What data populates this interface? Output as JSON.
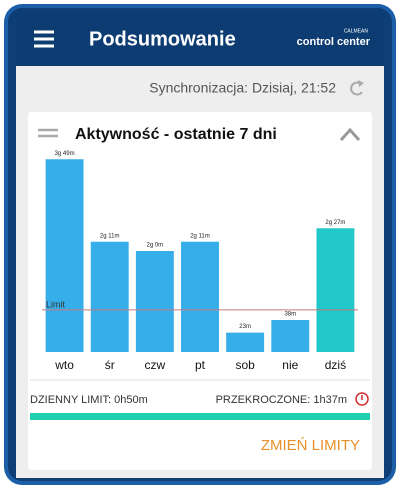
{
  "header": {
    "title": "Podsumowanie",
    "brand_small": "CALMEAN",
    "brand": "control center"
  },
  "sync": "Synchronizacja: Dzisiaj, 21:52",
  "card_title": "Aktywność - ostatnie 7 dni",
  "chart_data": {
    "type": "bar",
    "categories": [
      "wto",
      "śr",
      "czw",
      "pt",
      "sob",
      "nie",
      "dziś"
    ],
    "values": [
      229,
      131,
      120,
      131,
      23,
      38,
      147
    ],
    "value_labels": [
      "3g 49m",
      "2g 11m",
      "2g 0m",
      "2g 11m",
      "23m",
      "38m",
      "2g 27m"
    ],
    "colors": [
      "#35aee9",
      "#35aee9",
      "#35aee9",
      "#35aee9",
      "#35aee9",
      "#35aee9",
      "#22c7c9"
    ],
    "ylim": [
      0,
      240
    ],
    "limit": {
      "label": "Limit",
      "value": 50,
      "color": "#c77a7a"
    }
  },
  "footer": {
    "daily_limit": "DZIENNY LIMIT: 0h50m",
    "exceeded": "PRZEKROCZONE: 1h37m",
    "button": "ZMIEŃ LIMITY"
  }
}
